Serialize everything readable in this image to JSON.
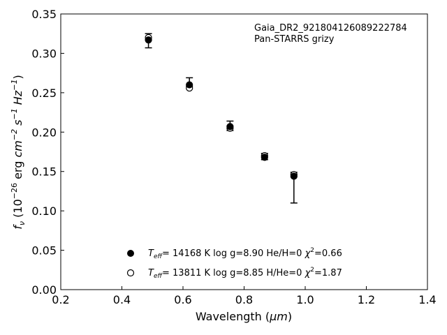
{
  "chart_data": {
    "type": "scatter",
    "xlabel_text": "Wavelength (",
    "xlabel_unit": "μm",
    "xlabel_close": ")",
    "ylabel": {
      "f": "f",
      "nu": "ν",
      "open": " (10",
      "exp1": "−26",
      "erg": " erg ",
      "cm": "cm",
      "exp2": "−2",
      "s": " s",
      "exp3": "−1",
      "hz": " Hz",
      "exp4": "−1",
      "close": ")"
    },
    "xlim": [
      0.2,
      1.4
    ],
    "ylim": [
      0.0,
      0.35
    ],
    "xticks": [
      0.2,
      0.4,
      0.6,
      0.8,
      1.0,
      1.2,
      1.4
    ],
    "xtick_labels": [
      "0.2",
      "0.4",
      "0.6",
      "0.8",
      "1.0",
      "1.2",
      "1.4"
    ],
    "yticks": [
      0.0,
      0.05,
      0.1,
      0.15,
      0.2,
      0.25,
      0.3,
      0.35
    ],
    "ytick_labels": [
      "0.00",
      "0.05",
      "0.10",
      "0.15",
      "0.20",
      "0.25",
      "0.30",
      "0.35"
    ],
    "annotation_lines": [
      "Gaia_DR2_921804126089222784",
      "Pan-STARRS grizy"
    ],
    "observed": {
      "x": [
        0.487,
        0.621,
        0.754,
        0.867,
        0.963
      ],
      "y_upper": [
        0.325,
        0.269,
        0.214,
        0.173,
        0.149
      ],
      "y_lower": [
        0.307,
        0.258,
        0.202,
        0.165,
        0.11
      ]
    },
    "series": [
      {
        "name": "H",
        "marker": "filled",
        "x": [
          0.487,
          0.621,
          0.754,
          0.867,
          0.963
        ],
        "y": [
          0.317,
          0.26,
          0.207,
          0.168,
          0.144
        ],
        "legend": {
          "t": "T",
          "sub": "eff",
          "rest": "= 14168 K  log g=8.90  He/H=0  ",
          "chi": "χ",
          "sup": "2",
          "val": "=0.66"
        }
      },
      {
        "name": "He",
        "marker": "open",
        "x": [
          0.487,
          0.621,
          0.754,
          0.867,
          0.963
        ],
        "y": [
          0.32,
          0.256,
          0.205,
          0.17,
          0.146
        ],
        "legend": {
          "t": "T",
          "sub": "eff",
          "rest": "= 13811 K  log g=8.85  H/He=0  ",
          "chi": "χ",
          "sup": "2",
          "val": "=1.87"
        }
      }
    ]
  }
}
